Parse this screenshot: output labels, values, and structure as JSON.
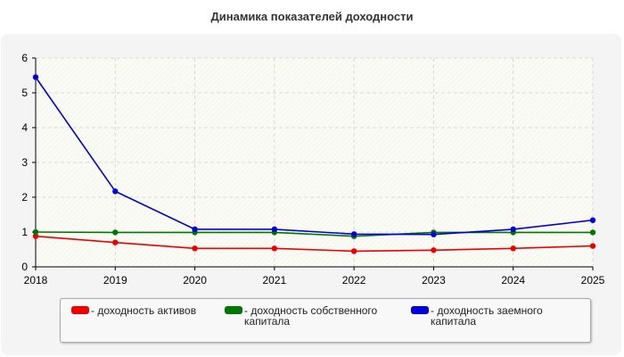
{
  "chart_data": {
    "type": "line",
    "title": "Динамика показателей доходности",
    "xlabel": "",
    "ylabel": "",
    "x": [
      "2018",
      "2019",
      "2020",
      "2021",
      "2022",
      "2023",
      "2024",
      "2025"
    ],
    "ylim": [
      0,
      6
    ],
    "yticks": [
      "0",
      "1",
      "2",
      "3",
      "4",
      "5",
      "6"
    ],
    "grid": true,
    "legend_position": "bottom",
    "series": [
      {
        "name": "- доходность активов",
        "color": "#ee0000",
        "values": [
          0.88,
          0.7,
          0.53,
          0.53,
          0.45,
          0.48,
          0.53,
          0.6
        ]
      },
      {
        "name": "- доходность собственного капитала",
        "color": "#007700",
        "values": [
          1.0,
          0.99,
          0.99,
          0.99,
          0.88,
          0.99,
          0.99,
          0.99
        ]
      },
      {
        "name": "- доходность заемного капитала",
        "color": "#0000dd",
        "values": [
          5.45,
          2.17,
          1.08,
          1.08,
          0.94,
          0.93,
          1.08,
          1.34
        ]
      }
    ]
  }
}
